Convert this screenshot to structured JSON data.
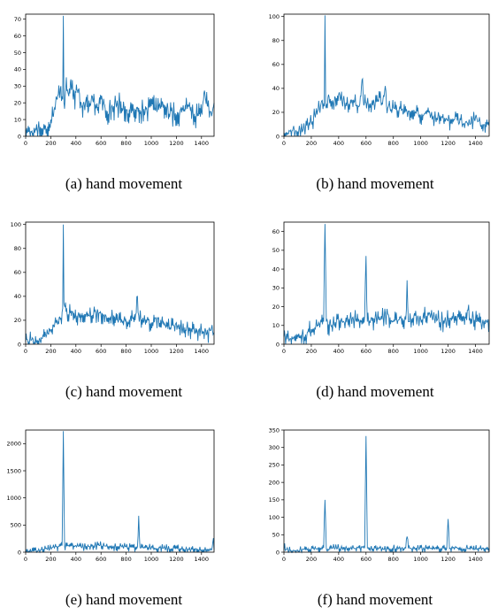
{
  "figure": {
    "captions": [
      "(a) hand movement",
      "(b) hand movement",
      "(c) hand movement",
      "(d) hand movement",
      "(e) hand movement",
      "(f) hand movement"
    ]
  },
  "chart_data": [
    {
      "id": "a",
      "type": "line",
      "title": "",
      "xlabel": "",
      "ylabel": "",
      "color": "#1f77b4",
      "grid": false,
      "xlim": [
        0,
        1500
      ],
      "ylim": [
        0,
        73
      ],
      "xticks": [
        0,
        200,
        400,
        600,
        800,
        1000,
        1200,
        1400
      ],
      "yticks": [
        0,
        10,
        20,
        30,
        40,
        50,
        60,
        70
      ],
      "caption": "(a) hand movement",
      "x": [
        0,
        50,
        100,
        150,
        200,
        230,
        260,
        280,
        295,
        300,
        305,
        320,
        340,
        360,
        380,
        400,
        420,
        450,
        480,
        500,
        530,
        560,
        600,
        650,
        700,
        750,
        800,
        850,
        900,
        950,
        1000,
        1050,
        1100,
        1150,
        1200,
        1250,
        1300,
        1350,
        1400,
        1420,
        1450,
        1480,
        1500
      ],
      "y": [
        4,
        3,
        5,
        4,
        10,
        17,
        25,
        30,
        22,
        72,
        20,
        29,
        25,
        34,
        22,
        26,
        28,
        18,
        22,
        15,
        24,
        17,
        22,
        15,
        18,
        20,
        16,
        15,
        17,
        14,
        18,
        17,
        19,
        14,
        13,
        16,
        18,
        12,
        14,
        26,
        18,
        12,
        20
      ],
      "noise": [
        2,
        8
      ]
    },
    {
      "id": "b",
      "type": "line",
      "title": "",
      "xlabel": "",
      "ylabel": "",
      "color": "#1f77b4",
      "grid": false,
      "xlim": [
        0,
        1500
      ],
      "ylim": [
        0,
        102
      ],
      "xticks": [
        0,
        200,
        400,
        600,
        800,
        1000,
        1200,
        1400
      ],
      "yticks": [
        0,
        20,
        40,
        60,
        80,
        100
      ],
      "caption": "(b) hand movement",
      "x": [
        0,
        50,
        100,
        150,
        200,
        250,
        280,
        295,
        300,
        305,
        330,
        360,
        400,
        450,
        500,
        550,
        575,
        580,
        600,
        650,
        700,
        720,
        740,
        750,
        800,
        850,
        900,
        950,
        1000,
        1050,
        1100,
        1150,
        1200,
        1250,
        1300,
        1350,
        1400,
        1450,
        1500
      ],
      "y": [
        3,
        5,
        4,
        6,
        12,
        22,
        30,
        25,
        101,
        26,
        33,
        28,
        35,
        26,
        30,
        25,
        48,
        30,
        28,
        26,
        32,
        27,
        42,
        25,
        24,
        23,
        20,
        22,
        18,
        20,
        14,
        16,
        13,
        15,
        12,
        11,
        16,
        10,
        14
      ],
      "noise": [
        2,
        8
      ]
    },
    {
      "id": "c",
      "type": "line",
      "title": "",
      "xlabel": "",
      "ylabel": "",
      "color": "#1f77b4",
      "grid": false,
      "xlim": [
        0,
        1500
      ],
      "ylim": [
        0,
        102
      ],
      "xticks": [
        0,
        200,
        400,
        600,
        800,
        1000,
        1200,
        1400
      ],
      "yticks": [
        0,
        20,
        40,
        60,
        80,
        100
      ],
      "caption": "(c) hand movement",
      "x": [
        0,
        50,
        100,
        150,
        200,
        250,
        280,
        295,
        300,
        305,
        330,
        360,
        400,
        450,
        500,
        550,
        600,
        650,
        700,
        750,
        800,
        850,
        880,
        890,
        900,
        950,
        1000,
        1050,
        1100,
        1150,
        1200,
        1250,
        1300,
        1350,
        1400,
        1450,
        1480,
        1500
      ],
      "y": [
        2,
        4,
        3,
        6,
        12,
        20,
        22,
        30,
        100,
        34,
        25,
        28,
        22,
        26,
        24,
        27,
        25,
        22,
        24,
        20,
        19,
        22,
        26,
        40,
        24,
        20,
        18,
        22,
        16,
        14,
        18,
        12,
        14,
        10,
        12,
        9,
        14,
        10
      ],
      "noise": [
        2,
        8
      ]
    },
    {
      "id": "d",
      "type": "line",
      "title": "",
      "xlabel": "",
      "ylabel": "",
      "color": "#1f77b4",
      "grid": false,
      "xlim": [
        0,
        1500
      ],
      "ylim": [
        0,
        65
      ],
      "xticks": [
        0,
        200,
        400,
        600,
        800,
        1000,
        1200,
        1400
      ],
      "yticks": [
        0,
        10,
        20,
        30,
        40,
        50,
        60
      ],
      "caption": "(d) hand movement",
      "x": [
        0,
        50,
        100,
        150,
        200,
        250,
        290,
        300,
        310,
        350,
        400,
        450,
        500,
        550,
        590,
        600,
        610,
        650,
        700,
        750,
        800,
        850,
        890,
        900,
        910,
        950,
        1000,
        1050,
        1100,
        1150,
        1200,
        1250,
        1300,
        1340,
        1350,
        1360,
        1400,
        1450,
        1500
      ],
      "y": [
        4,
        3,
        5,
        4,
        8,
        10,
        12,
        64,
        12,
        10,
        13,
        12,
        14,
        12,
        15,
        47,
        12,
        14,
        13,
        16,
        12,
        14,
        13,
        34,
        12,
        15,
        13,
        16,
        14,
        12,
        13,
        15,
        12,
        18,
        21,
        14,
        13,
        11,
        13
      ],
      "noise": [
        1,
        6
      ]
    },
    {
      "id": "e",
      "type": "line",
      "title": "",
      "xlabel": "",
      "ylabel": "",
      "color": "#1f77b4",
      "grid": false,
      "xlim": [
        0,
        1500
      ],
      "ylim": [
        0,
        2250
      ],
      "xticks": [
        0,
        200,
        400,
        600,
        800,
        1000,
        1200,
        1400
      ],
      "yticks": [
        0,
        500,
        1000,
        1500,
        2000
      ],
      "caption": "(e) hand movement",
      "x": [
        0,
        50,
        100,
        150,
        200,
        250,
        290,
        300,
        310,
        350,
        400,
        450,
        500,
        550,
        600,
        650,
        700,
        750,
        800,
        850,
        890,
        900,
        910,
        950,
        1000,
        1050,
        1100,
        1150,
        1200,
        1250,
        1300,
        1350,
        1400,
        1450,
        1480,
        1495,
        1500
      ],
      "y": [
        10,
        20,
        30,
        60,
        80,
        100,
        120,
        2230,
        120,
        110,
        120,
        100,
        110,
        120,
        130,
        110,
        100,
        110,
        100,
        90,
        100,
        670,
        90,
        80,
        90,
        70,
        80,
        60,
        70,
        60,
        50,
        60,
        40,
        50,
        40,
        260,
        40
      ],
      "noise": [
        10,
        80
      ]
    },
    {
      "id": "f",
      "type": "line",
      "title": "",
      "xlabel": "",
      "ylabel": "",
      "color": "#1f77b4",
      "grid": false,
      "xlim": [
        0,
        1500
      ],
      "ylim": [
        0,
        350
      ],
      "xticks": [
        0,
        200,
        400,
        600,
        800,
        1000,
        1200,
        1400
      ],
      "yticks": [
        0,
        50,
        100,
        150,
        200,
        250,
        300,
        350
      ],
      "caption": "(f) hand movement",
      "x": [
        0,
        5,
        10,
        20,
        50,
        100,
        150,
        200,
        250,
        290,
        300,
        310,
        350,
        400,
        450,
        500,
        550,
        590,
        600,
        610,
        650,
        700,
        750,
        800,
        850,
        890,
        900,
        910,
        950,
        1000,
        1050,
        1100,
        1150,
        1190,
        1200,
        1210,
        1250,
        1300,
        1350,
        1400,
        1450,
        1500
      ],
      "y": [
        5,
        25,
        5,
        8,
        5,
        6,
        8,
        10,
        12,
        12,
        150,
        10,
        12,
        14,
        12,
        13,
        12,
        14,
        333,
        12,
        10,
        12,
        10,
        12,
        11,
        12,
        45,
        11,
        10,
        12,
        10,
        11,
        10,
        12,
        95,
        10,
        12,
        10,
        11,
        10,
        12,
        11
      ],
      "noise": [
        3,
        12
      ]
    }
  ]
}
